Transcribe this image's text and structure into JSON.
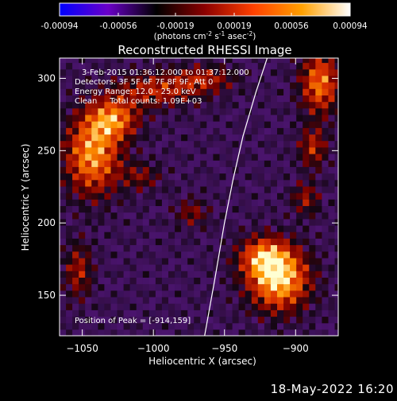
{
  "colorbar": {
    "ticks": [
      "-0.00094",
      "-0.00056",
      "-0.00019",
      "0.00019",
      "0.00056",
      "0.00094"
    ],
    "units_main": "(photons cm",
    "units_sup1": "-2",
    "units_mid": " s",
    "units_sup2": "-1",
    "units_end": " asec",
    "units_sup3": "-2",
    "units_close": ")",
    "colors": [
      "#0000ff",
      "#6a00c8",
      "#000000",
      "#8b0000",
      "#ff4000",
      "#ffa000",
      "#ffffff"
    ]
  },
  "chart_data": {
    "type": "heatmap",
    "title": "Reconstructed RHESSI Image",
    "xlabel": "Heliocentric X (arcsec)",
    "ylabel": "Heliocentric Y (arcsec)",
    "xlim": [
      -1066,
      -870
    ],
    "ylim": [
      122,
      314
    ],
    "xticks": [
      -1050,
      -1000,
      -950,
      -900
    ],
    "yticks": [
      150,
      200,
      250,
      300
    ],
    "xtick_labels": [
      "−1050",
      "−1000",
      "−950",
      "−900"
    ],
    "ytick_labels": [
      "150",
      "200",
      "250",
      "300"
    ],
    "value_range": [
      -0.00094,
      0.00094
    ],
    "peak": {
      "x": -914,
      "y": 159
    },
    "limb_curve": [
      [
        -964,
        122
      ],
      [
        -957,
        160
      ],
      [
        -950,
        200
      ],
      [
        -944,
        230
      ],
      [
        -937,
        260
      ],
      [
        -928,
        290
      ],
      [
        -920,
        314
      ]
    ],
    "annotations": [
      "3-Feb-2015 01:36:12.000 to 01:37:12.000",
      "Detectors: 3F 5F 6F 7F 8F 9F, Att 0",
      "Energy Range: 12.0 - 25.0 keV",
      "Clean     Total counts: 1.09E+03",
      "Position of Peak = [-914,159]"
    ]
  },
  "footer": "18-May-2022 16:20"
}
